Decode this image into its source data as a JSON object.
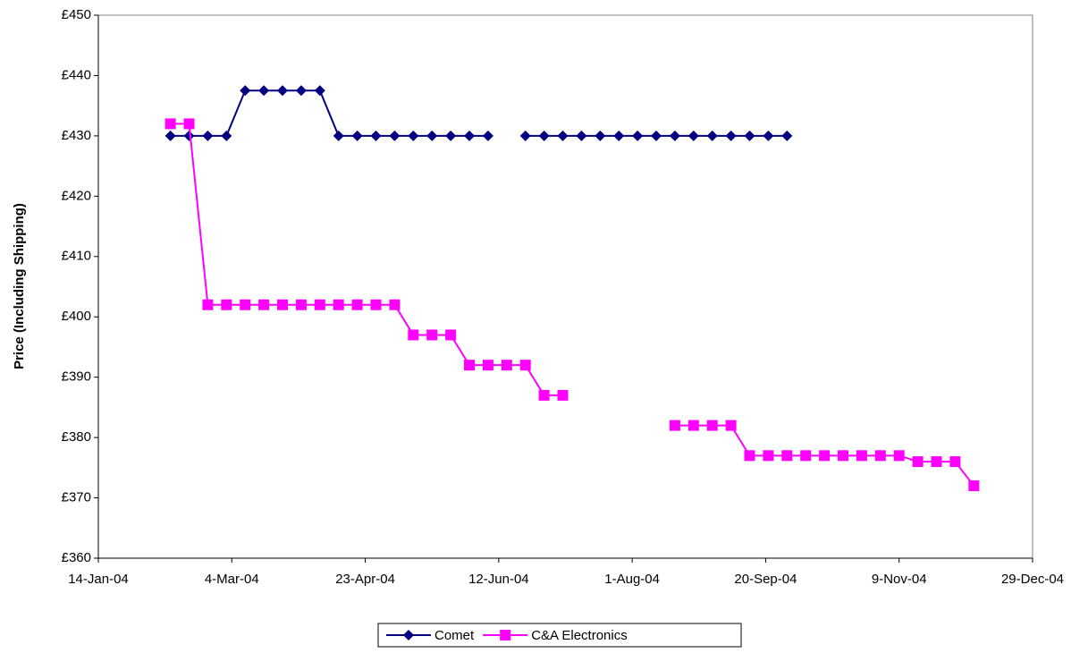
{
  "chart_data": {
    "type": "line",
    "ylabel": "Price (Including Shipping)",
    "x": [
      "2004-02-10",
      "2004-02-17",
      "2004-02-24",
      "2004-03-02",
      "2004-03-09",
      "2004-03-16",
      "2004-03-23",
      "2004-03-30",
      "2004-04-06",
      "2004-04-13",
      "2004-04-20",
      "2004-04-27",
      "2004-05-04",
      "2004-05-11",
      "2004-05-18",
      "2004-05-25",
      "2004-06-01",
      "2004-06-08",
      "2004-06-15",
      "2004-06-22",
      "2004-06-29",
      "2004-07-06",
      "2004-07-13",
      "2004-07-20",
      "2004-07-27",
      "2004-08-03",
      "2004-08-10",
      "2004-08-17",
      "2004-08-24",
      "2004-08-31",
      "2004-09-07",
      "2004-09-14",
      "2004-09-21",
      "2004-09-28",
      "2004-10-05",
      "2004-10-12",
      "2004-10-19",
      "2004-10-26",
      "2004-11-02",
      "2004-11-09",
      "2004-11-16",
      "2004-11-23",
      "2004-11-30",
      "2004-12-07"
    ],
    "series": [
      {
        "name": "Comet",
        "color": "#000080",
        "marker": "diamond",
        "values": [
          430,
          430,
          430,
          430,
          437.5,
          437.5,
          437.5,
          437.5,
          437.5,
          430,
          430,
          430,
          430,
          430,
          430,
          430,
          430,
          430,
          null,
          430,
          430,
          430,
          430,
          430,
          430,
          430,
          430,
          430,
          430,
          430,
          430,
          430,
          430,
          430,
          null,
          null,
          null,
          null,
          null,
          null,
          null,
          null,
          null,
          null
        ]
      },
      {
        "name": "C&A Electronics",
        "color": "#ff00ff",
        "marker": "square",
        "values": [
          432,
          432,
          402,
          402,
          402,
          402,
          402,
          402,
          402,
          402,
          402,
          402,
          402,
          397,
          397,
          397,
          392,
          392,
          392,
          392,
          387,
          387,
          null,
          null,
          null,
          null,
          null,
          382,
          382,
          382,
          382,
          377,
          377,
          377,
          377,
          377,
          377,
          377,
          377,
          377,
          376,
          376,
          376,
          372
        ]
      }
    ],
    "xlim": [
      "2004-01-14",
      "2004-12-29"
    ],
    "xticks": [
      {
        "value": "2004-01-14",
        "label": "14-Jan-04"
      },
      {
        "value": "2004-03-04",
        "label": "4-Mar-04"
      },
      {
        "value": "2004-04-23",
        "label": "23-Apr-04"
      },
      {
        "value": "2004-06-12",
        "label": "12-Jun-04"
      },
      {
        "value": "2004-08-01",
        "label": "1-Aug-04"
      },
      {
        "value": "2004-09-20",
        "label": "20-Sep-04"
      },
      {
        "value": "2004-11-09",
        "label": "9-Nov-04"
      },
      {
        "value": "2004-12-29",
        "label": "29-Dec-04"
      }
    ],
    "ylim": [
      360,
      450
    ],
    "yticks": [
      {
        "value": 360,
        "label": "£360"
      },
      {
        "value": 370,
        "label": "£370"
      },
      {
        "value": 380,
        "label": "£380"
      },
      {
        "value": 390,
        "label": "£390"
      },
      {
        "value": 400,
        "label": "£400"
      },
      {
        "value": 410,
        "label": "£410"
      },
      {
        "value": 420,
        "label": "£420"
      },
      {
        "value": 430,
        "label": "£430"
      },
      {
        "value": 440,
        "label": "£440"
      },
      {
        "value": 450,
        "label": "£450"
      }
    ],
    "grid": false,
    "legend": "bottom"
  }
}
